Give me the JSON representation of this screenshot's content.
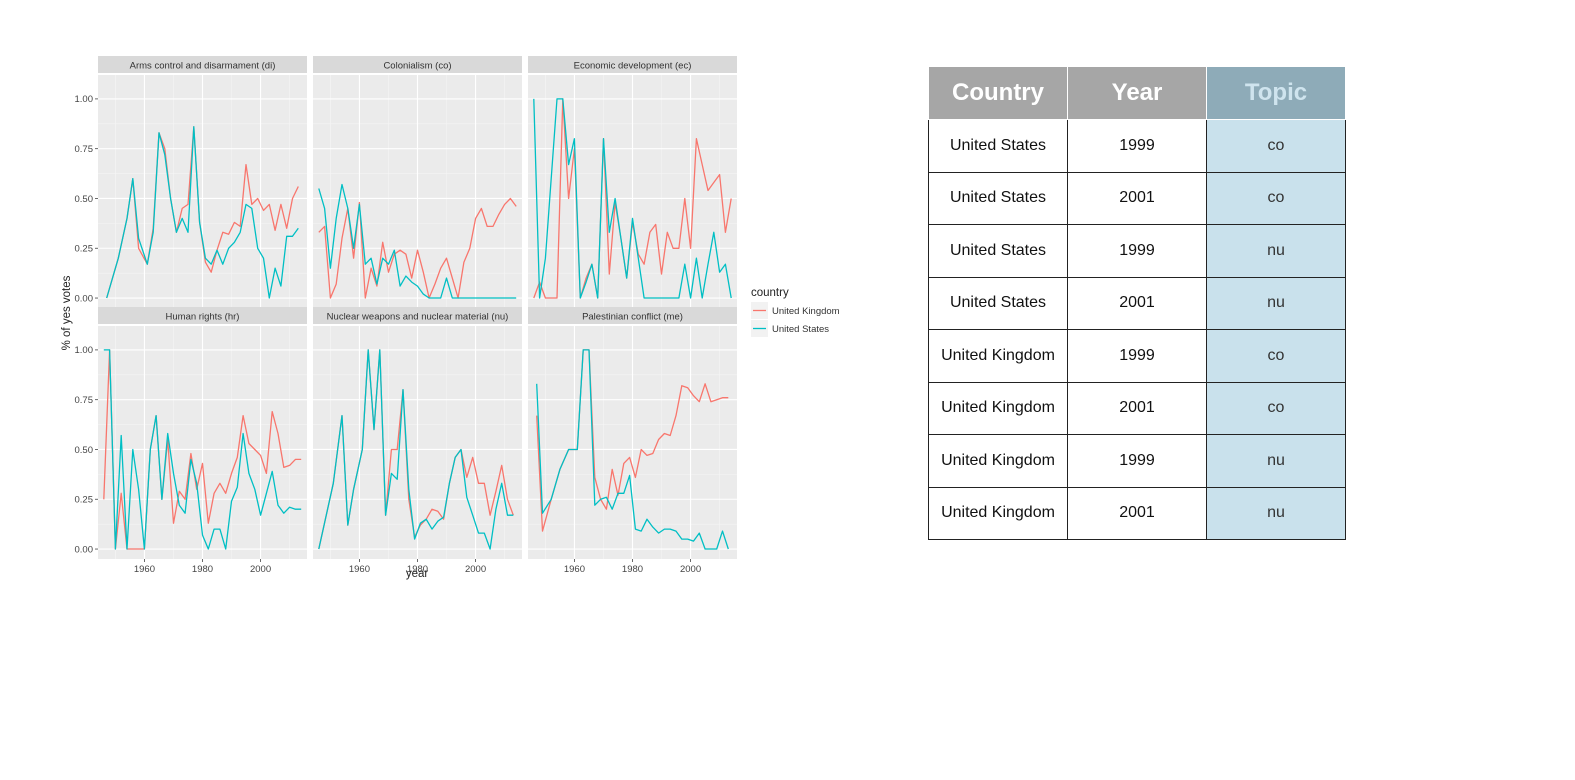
{
  "chart_data": {
    "type": "line",
    "xlabel": "year",
    "ylabel": "% of yes votes",
    "xlim": [
      1944,
      2016
    ],
    "ylim": [
      -0.05,
      1.12
    ],
    "x_ticks": [
      1960,
      1980,
      2000
    ],
    "y_ticks": [
      "0.00",
      "0.25",
      "0.50",
      "0.75",
      "1.00"
    ],
    "legend": {
      "title": "country",
      "position": "right"
    },
    "colors": {
      "United Kingdom": "#f8766d",
      "United States": "#00bfc4"
    },
    "facets": [
      {
        "title": "Arms control and disarmament (di)",
        "series": [
          {
            "name": "United Kingdom",
            "x": [
              1947,
              1951,
              1954,
              1956,
              1958,
              1961,
              1963,
              1965,
              1967,
              1969,
              1971,
              1973,
              1975,
              1977,
              1979,
              1981,
              1983,
              1985,
              1987,
              1989,
              1991,
              1993,
              1995,
              1997,
              1999,
              2001,
              2003,
              2005,
              2007,
              2009,
              2011,
              2013
            ],
            "y": [
              0.0,
              0.2,
              0.4,
              0.6,
              0.25,
              0.17,
              0.35,
              0.83,
              0.75,
              0.5,
              0.33,
              0.45,
              0.47,
              0.86,
              0.38,
              0.18,
              0.13,
              0.24,
              0.33,
              0.32,
              0.38,
              0.36,
              0.67,
              0.47,
              0.5,
              0.44,
              0.47,
              0.34,
              0.47,
              0.35,
              0.5,
              0.56
            ]
          },
          {
            "name": "United States",
            "x": [
              1947,
              1951,
              1954,
              1956,
              1958,
              1961,
              1963,
              1965,
              1967,
              1969,
              1971,
              1973,
              1975,
              1977,
              1979,
              1981,
              1983,
              1985,
              1987,
              1989,
              1991,
              1993,
              1995,
              1997,
              1999,
              2001,
              2003,
              2005,
              2007,
              2009,
              2011,
              2013
            ],
            "y": [
              0.0,
              0.2,
              0.4,
              0.6,
              0.3,
              0.17,
              0.33,
              0.83,
              0.72,
              0.5,
              0.33,
              0.4,
              0.33,
              0.86,
              0.38,
              0.2,
              0.17,
              0.24,
              0.17,
              0.25,
              0.28,
              0.33,
              0.47,
              0.45,
              0.25,
              0.2,
              0.0,
              0.15,
              0.06,
              0.31,
              0.31,
              0.35
            ]
          }
        ]
      },
      {
        "title": "Colonialism (co)",
        "series": [
          {
            "name": "United Kingdom",
            "x": [
              1946,
              1948,
              1950,
              1952,
              1954,
              1956,
              1958,
              1960,
              1962,
              1964,
              1966,
              1968,
              1970,
              1972,
              1974,
              1976,
              1978,
              1980,
              1982,
              1984,
              1986,
              1988,
              1990,
              1992,
              1994,
              1996,
              1998,
              2000,
              2002,
              2004,
              2006,
              2008,
              2010,
              2012,
              2014
            ],
            "y": [
              0.33,
              0.36,
              0.0,
              0.07,
              0.3,
              0.45,
              0.2,
              0.48,
              0.0,
              0.15,
              0.06,
              0.28,
              0.13,
              0.22,
              0.24,
              0.22,
              0.1,
              0.24,
              0.13,
              0.0,
              0.07,
              0.15,
              0.2,
              0.1,
              0.0,
              0.18,
              0.25,
              0.4,
              0.45,
              0.36,
              0.36,
              0.42,
              0.47,
              0.5,
              0.46
            ]
          },
          {
            "name": "United States",
            "x": [
              1946,
              1948,
              1950,
              1952,
              1954,
              1956,
              1958,
              1960,
              1962,
              1964,
              1966,
              1968,
              1970,
              1972,
              1974,
              1976,
              1978,
              1980,
              1982,
              1984,
              1986,
              1988,
              1990,
              1992,
              1994,
              1996,
              1998,
              2000,
              2002,
              2004,
              2006,
              2008,
              2010,
              2012,
              2014
            ],
            "y": [
              0.55,
              0.45,
              0.15,
              0.4,
              0.57,
              0.45,
              0.25,
              0.47,
              0.17,
              0.2,
              0.07,
              0.2,
              0.17,
              0.24,
              0.06,
              0.11,
              0.08,
              0.06,
              0.02,
              0.0,
              0.0,
              0.0,
              0.1,
              0.0,
              0.0,
              0.0,
              0.0,
              0.0,
              0.0,
              0.0,
              0.0,
              0.0,
              0.0,
              0.0,
              0.0
            ]
          }
        ]
      },
      {
        "title": "Economic development (ec)",
        "series": [
          {
            "name": "United Kingdom",
            "x": [
              1946,
              1948,
              1950,
              1952,
              1954,
              1956,
              1958,
              1960,
              1962,
              1964,
              1966,
              1968,
              1970,
              1972,
              1974,
              1976,
              1978,
              1980,
              1982,
              1984,
              1986,
              1988,
              1990,
              1992,
              1994,
              1996,
              1998,
              2000,
              2002,
              2004,
              2006,
              2008,
              2010,
              2012,
              2014
            ],
            "y": [
              0.0,
              0.08,
              0.0,
              0.0,
              0.0,
              1.0,
              0.5,
              0.75,
              0.0,
              0.1,
              0.17,
              0.0,
              0.8,
              0.12,
              0.48,
              0.3,
              0.1,
              0.38,
              0.22,
              0.17,
              0.33,
              0.37,
              0.12,
              0.33,
              0.25,
              0.25,
              0.5,
              0.25,
              0.8,
              0.67,
              0.54,
              0.58,
              0.62,
              0.33,
              0.5
            ]
          },
          {
            "name": "United States",
            "x": [
              1946,
              1948,
              1950,
              1952,
              1954,
              1956,
              1958,
              1960,
              1962,
              1964,
              1966,
              1968,
              1970,
              1972,
              1974,
              1976,
              1978,
              1980,
              1982,
              1984,
              1986,
              1988,
              1990,
              1992,
              1994,
              1996,
              1998,
              2000,
              2002,
              2004,
              2006,
              2008,
              2010,
              2012,
              2014
            ],
            "y": [
              1.0,
              0.0,
              0.2,
              0.6,
              1.0,
              1.0,
              0.67,
              0.8,
              0.0,
              0.08,
              0.17,
              0.0,
              0.8,
              0.33,
              0.5,
              0.3,
              0.1,
              0.4,
              0.2,
              0.0,
              0.0,
              0.0,
              0.0,
              0.0,
              0.0,
              0.0,
              0.17,
              0.0,
              0.2,
              0.0,
              0.17,
              0.33,
              0.13,
              0.17,
              0.0
            ]
          }
        ]
      },
      {
        "title": "Human rights (hr)",
        "series": [
          {
            "name": "United Kingdom",
            "x": [
              1946,
              1948,
              1950,
              1952,
              1954,
              1956,
              1958,
              1960,
              1962,
              1964,
              1966,
              1968,
              1970,
              1972,
              1974,
              1976,
              1978,
              1980,
              1982,
              1984,
              1986,
              1988,
              1990,
              1992,
              1994,
              1996,
              1998,
              2000,
              2002,
              2004,
              2006,
              2008,
              2010,
              2012,
              2014
            ],
            "y": [
              0.25,
              1.0,
              0.0,
              0.28,
              0.0,
              0.0,
              0.0,
              0.0,
              0.5,
              0.67,
              0.25,
              0.55,
              0.13,
              0.29,
              0.25,
              0.48,
              0.3,
              0.43,
              0.13,
              0.28,
              0.33,
              0.28,
              0.38,
              0.46,
              0.67,
              0.53,
              0.5,
              0.47,
              0.38,
              0.69,
              0.58,
              0.41,
              0.42,
              0.45,
              0.45
            ]
          },
          {
            "name": "United States",
            "x": [
              1946,
              1948,
              1950,
              1952,
              1954,
              1956,
              1958,
              1960,
              1962,
              1964,
              1966,
              1968,
              1970,
              1972,
              1974,
              1976,
              1978,
              1980,
              1982,
              1984,
              1986,
              1988,
              1990,
              1992,
              1994,
              1996,
              1998,
              2000,
              2002,
              2004,
              2006,
              2008,
              2010,
              2012,
              2014
            ],
            "y": [
              1.0,
              1.0,
              0.0,
              0.57,
              0.0,
              0.5,
              0.3,
              0.0,
              0.5,
              0.67,
              0.25,
              0.58,
              0.38,
              0.22,
              0.18,
              0.45,
              0.33,
              0.07,
              0.0,
              0.1,
              0.1,
              0.0,
              0.24,
              0.31,
              0.58,
              0.38,
              0.3,
              0.17,
              0.28,
              0.39,
              0.22,
              0.18,
              0.21,
              0.2,
              0.2
            ]
          }
        ]
      },
      {
        "title": "Nuclear weapons and nuclear material (nu)",
        "series": [
          {
            "name": "United Kingdom",
            "x": [
              1946,
              1951,
              1954,
              1956,
              1958,
              1961,
              1963,
              1965,
              1967,
              1969,
              1971,
              1973,
              1975,
              1977,
              1979,
              1981,
              1983,
              1985,
              1987,
              1989,
              1991,
              1993,
              1995,
              1997,
              1999,
              2001,
              2003,
              2005,
              2007,
              2009,
              2011,
              2013
            ],
            "y": [
              0.0,
              0.33,
              0.67,
              0.12,
              0.3,
              0.5,
              1.0,
              0.6,
              1.0,
              0.17,
              0.5,
              0.5,
              0.8,
              0.25,
              0.06,
              0.12,
              0.15,
              0.2,
              0.19,
              0.15,
              0.33,
              0.46,
              0.5,
              0.36,
              0.46,
              0.33,
              0.33,
              0.17,
              0.29,
              0.42,
              0.25,
              0.17
            ]
          },
          {
            "name": "United States",
            "x": [
              1946,
              1951,
              1954,
              1956,
              1958,
              1961,
              1963,
              1965,
              1967,
              1969,
              1971,
              1973,
              1975,
              1977,
              1979,
              1981,
              1983,
              1985,
              1987,
              1989,
              1991,
              1993,
              1995,
              1997,
              1999,
              2001,
              2003,
              2005,
              2007,
              2009,
              2011,
              2013
            ],
            "y": [
              0.0,
              0.33,
              0.67,
              0.12,
              0.3,
              0.5,
              1.0,
              0.6,
              1.0,
              0.17,
              0.38,
              0.35,
              0.8,
              0.3,
              0.05,
              0.13,
              0.15,
              0.1,
              0.14,
              0.16,
              0.33,
              0.46,
              0.5,
              0.26,
              0.17,
              0.08,
              0.08,
              0.0,
              0.2,
              0.33,
              0.17,
              0.17
            ]
          }
        ]
      },
      {
        "title": "Palestinian conflict (me)",
        "series": [
          {
            "name": "United Kingdom",
            "x": [
              1947,
              1949,
              1952,
              1955,
              1958,
              1961,
              1963,
              1965,
              1967,
              1969,
              1971,
              1973,
              1975,
              1977,
              1979,
              1981,
              1983,
              1985,
              1987,
              1989,
              1991,
              1993,
              1995,
              1997,
              1999,
              2001,
              2003,
              2005,
              2007,
              2009,
              2011,
              2013
            ],
            "y": [
              0.67,
              0.09,
              0.25,
              0.4,
              0.5,
              0.5,
              1.0,
              1.0,
              0.36,
              0.25,
              0.2,
              0.4,
              0.27,
              0.43,
              0.46,
              0.36,
              0.5,
              0.47,
              0.48,
              0.55,
              0.58,
              0.57,
              0.67,
              0.82,
              0.81,
              0.77,
              0.74,
              0.83,
              0.74,
              0.75,
              0.76,
              0.76
            ]
          },
          {
            "name": "United States",
            "x": [
              1947,
              1949,
              1952,
              1955,
              1958,
              1961,
              1963,
              1965,
              1967,
              1969,
              1971,
              1973,
              1975,
              1977,
              1979,
              1981,
              1983,
              1985,
              1987,
              1989,
              1991,
              1993,
              1995,
              1997,
              1999,
              2001,
              2003,
              2005,
              2007,
              2009,
              2011,
              2013
            ],
            "y": [
              0.83,
              0.18,
              0.25,
              0.4,
              0.5,
              0.5,
              1.0,
              1.0,
              0.22,
              0.25,
              0.26,
              0.2,
              0.28,
              0.28,
              0.37,
              0.1,
              0.09,
              0.15,
              0.11,
              0.08,
              0.1,
              0.1,
              0.09,
              0.05,
              0.05,
              0.04,
              0.08,
              0.0,
              0.0,
              0.0,
              0.09,
              0.0
            ]
          }
        ]
      }
    ]
  },
  "table": {
    "headers": [
      "Country",
      "Year",
      "Topic"
    ],
    "rows": [
      [
        "United States",
        "1999",
        "co"
      ],
      [
        "United States",
        "2001",
        "co"
      ],
      [
        "United States",
        "1999",
        "nu"
      ],
      [
        "United States",
        "2001",
        "nu"
      ],
      [
        "United Kingdom",
        "1999",
        "co"
      ],
      [
        "United Kingdom",
        "2001",
        "co"
      ],
      [
        "United Kingdom",
        "1999",
        "nu"
      ],
      [
        "United Kingdom",
        "2001",
        "nu"
      ]
    ]
  }
}
